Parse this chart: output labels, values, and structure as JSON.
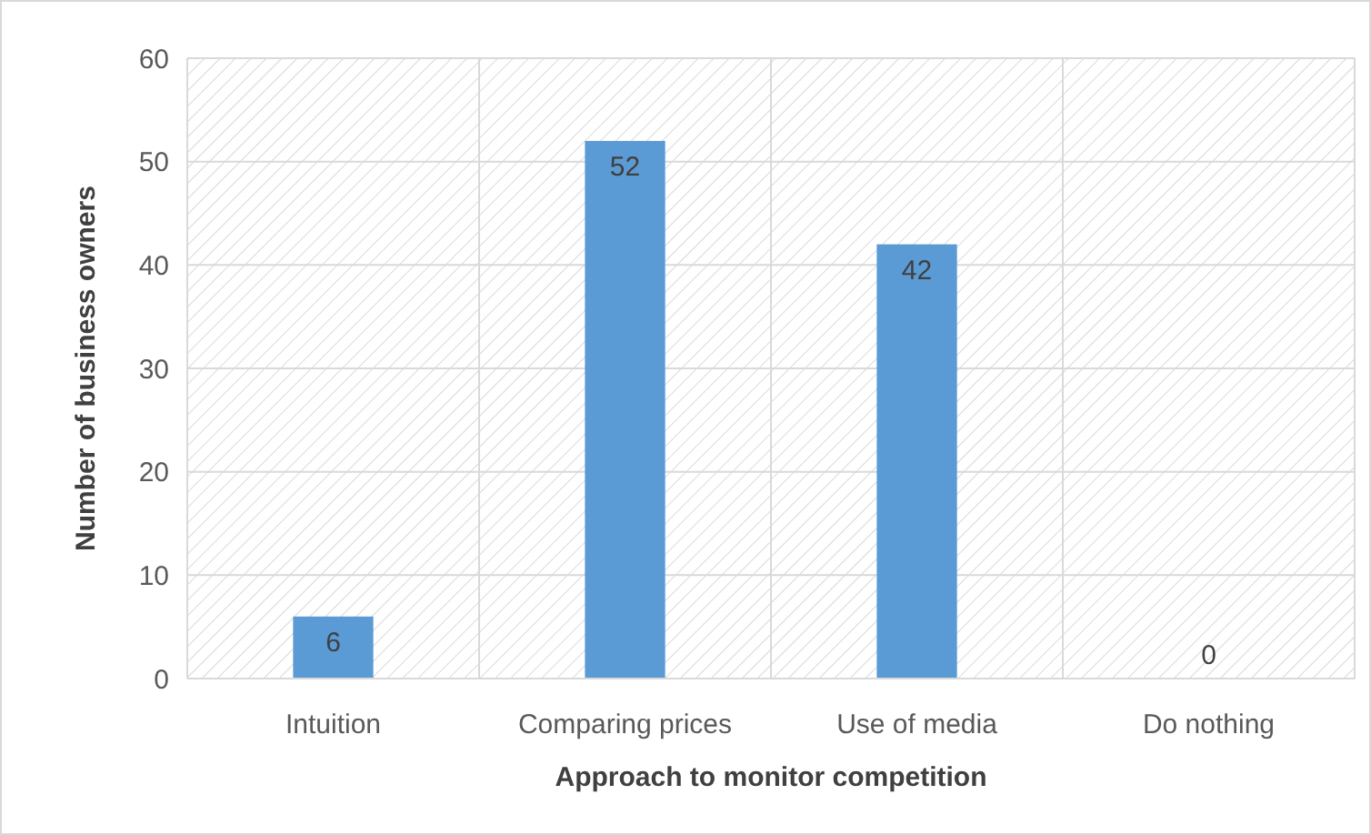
{
  "chart_data": {
    "type": "bar",
    "xlabel": "Approach to monitor competition",
    "ylabel": "Number of business owners",
    "categories": [
      "Intuition",
      "Comparing prices",
      "Use of media",
      "Do nothing"
    ],
    "values": [
      6,
      52,
      42,
      0
    ],
    "color": "#5b9bd5",
    "ylim": [
      0,
      60
    ],
    "yticks": [
      0,
      10,
      20,
      30,
      40,
      50,
      60
    ],
    "grid": true,
    "data_labels": true
  }
}
